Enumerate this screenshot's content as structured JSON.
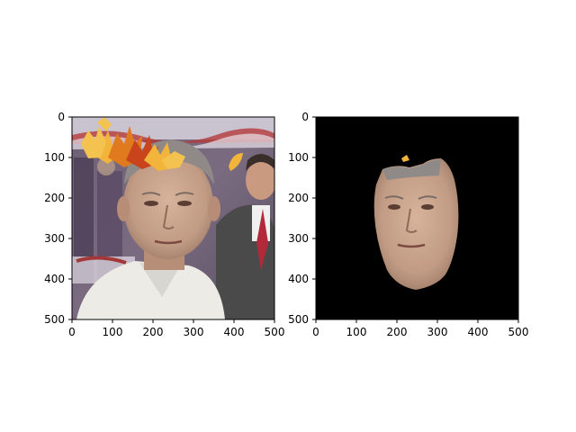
{
  "panels": [
    {
      "name": "left",
      "image": "photo-with-autumn-leaves-overlay",
      "xticks": [
        "0",
        "100",
        "200",
        "300",
        "400",
        "500"
      ],
      "yticks": [
        "0",
        "100",
        "200",
        "300",
        "400",
        "500"
      ]
    },
    {
      "name": "right",
      "image": "face-segmentation-mask",
      "xticks": [
        "0",
        "100",
        "200",
        "300",
        "400",
        "500"
      ],
      "yticks": [
        "0",
        "100",
        "200",
        "300",
        "400",
        "500"
      ]
    }
  ],
  "colors": {
    "leaf_yellow": "#f2b43a",
    "leaf_orange": "#e07a1e",
    "leaf_red": "#c9441a",
    "skin": "#c9a58f",
    "mask_bg": "#000000"
  }
}
